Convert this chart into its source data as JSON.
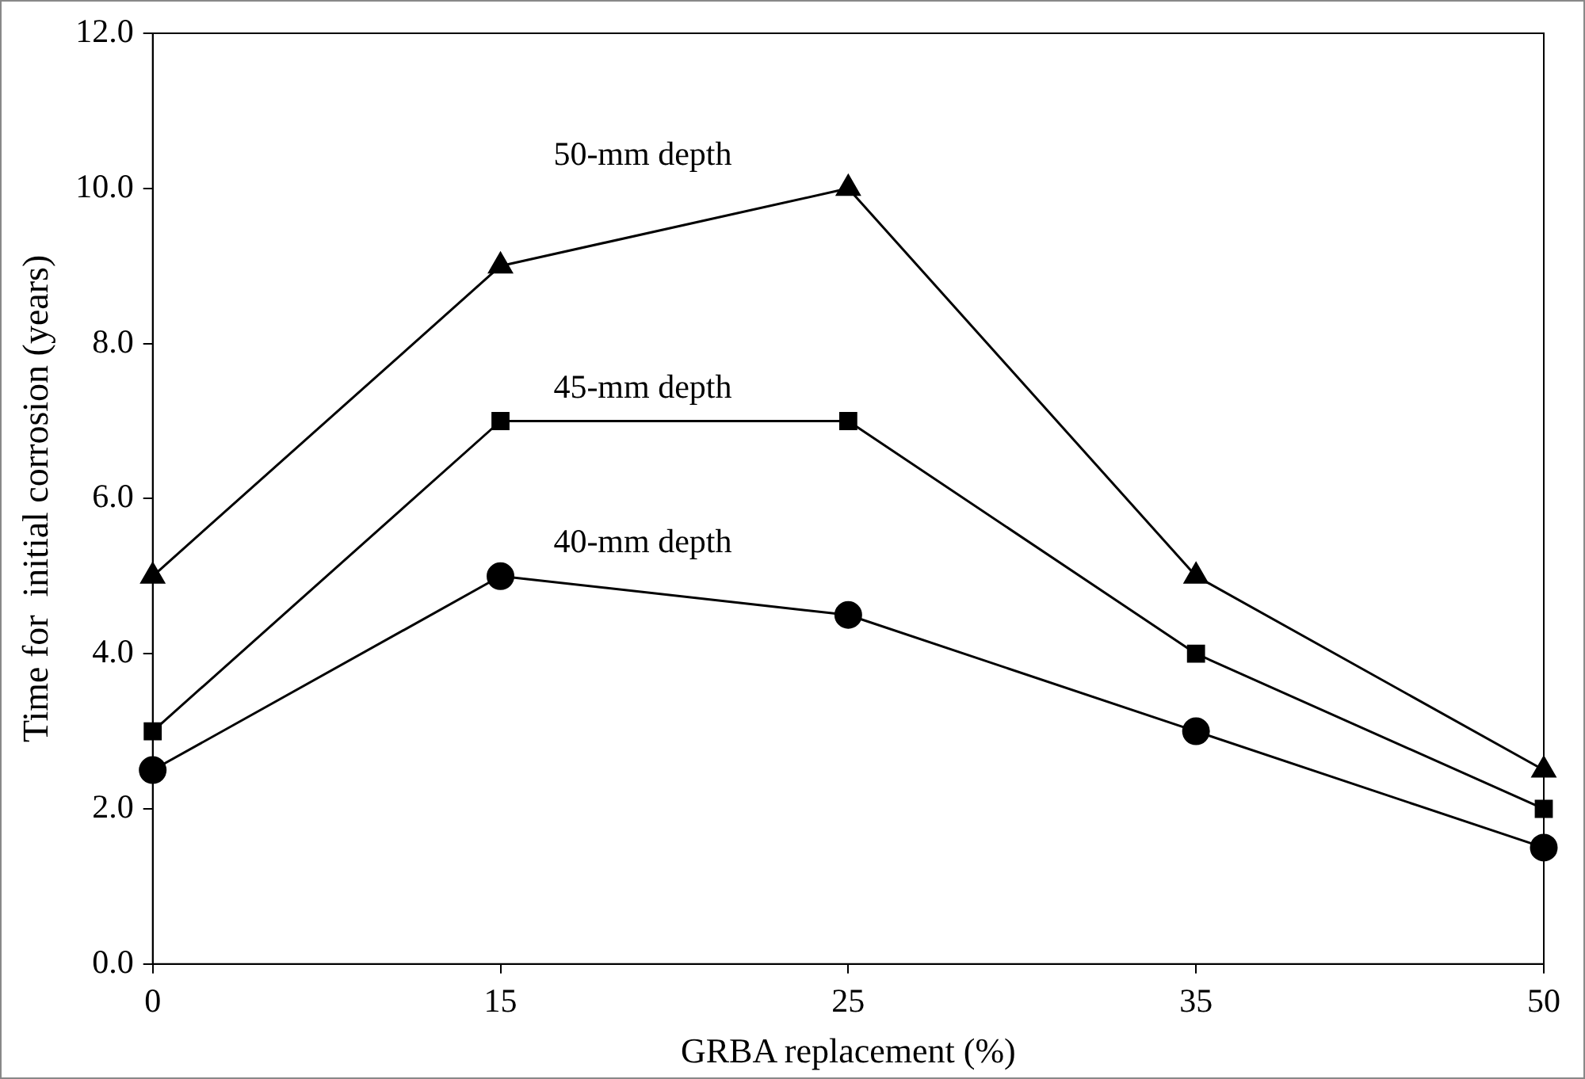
{
  "chart_data": {
    "type": "line",
    "xlabel": "GRBA replacement (%)",
    "ylabel": "Time for  initial corrosion (years)",
    "categories": [
      "0",
      "15",
      "25",
      "35",
      "50"
    ],
    "ylim": [
      0,
      12
    ],
    "yticks": [
      {
        "value": 0,
        "label": "0.0"
      },
      {
        "value": 2,
        "label": "2.0"
      },
      {
        "value": 4,
        "label": "4.0"
      },
      {
        "value": 6,
        "label": "6.0"
      },
      {
        "value": 8,
        "label": "8.0"
      },
      {
        "value": 10,
        "label": "10.0"
      },
      {
        "value": 12,
        "label": "12.0"
      }
    ],
    "grid": false,
    "legend": false,
    "line_style": "solid",
    "series": [
      {
        "name": "50-mm depth",
        "color": "#000000",
        "marker": "triangle",
        "values": [
          5,
          9,
          10,
          5,
          2.5
        ]
      },
      {
        "name": "45-mm depth",
        "color": "#000000",
        "marker": "square",
        "values": [
          3,
          7,
          7,
          4,
          2
        ]
      },
      {
        "name": "40-mm depth",
        "color": "#000000",
        "marker": "circle",
        "values": [
          2.5,
          5,
          4.5,
          3,
          1.5
        ]
      }
    ]
  }
}
